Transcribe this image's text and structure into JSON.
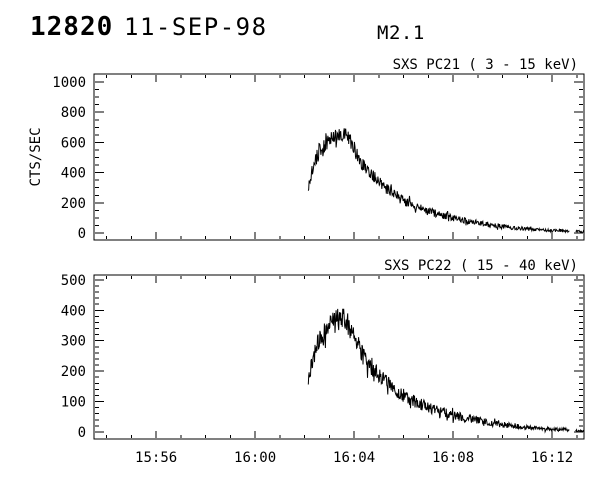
{
  "header": {
    "flare_number": "12820",
    "date": "11-SEP-98",
    "goes_class": "M2.1"
  },
  "colors": {
    "foreground": "#000000",
    "background": "#ffffff"
  },
  "chart_data": [
    {
      "type": "line",
      "title": "SXS PC21  (  3 - 15 keV)",
      "ylabel": "CTS/SEC",
      "x_unit": "time (minutes relative to 16:00)",
      "y_unit": "counts per second",
      "xlim": [
        -6.51,
        13.29
      ],
      "ylim": [
        -46,
        1053
      ],
      "x_ticks": [
        {
          "value": -4,
          "label": "15:56"
        },
        {
          "value": 0,
          "label": "16:00"
        },
        {
          "value": 4,
          "label": "16:04"
        },
        {
          "value": 8,
          "label": "16:08"
        },
        {
          "value": 12,
          "label": "16:12"
        }
      ],
      "y_ticks": [
        {
          "value": 0,
          "label": "0"
        },
        {
          "value": 200,
          "label": "200"
        },
        {
          "value": 400,
          "label": "400"
        },
        {
          "value": 600,
          "label": "600"
        },
        {
          "value": 800,
          "label": "800"
        },
        {
          "value": 1000,
          "label": "1000"
        }
      ],
      "x_minor_step": 1,
      "y_minor_step": 50,
      "show_x_tick_labels": false,
      "grid": false,
      "series": [
        {
          "name": "SXS PC21 3-15 keV lightcurve",
          "points": [
            [
              2.15,
              270
            ],
            [
              2.2,
              330
            ],
            [
              2.3,
              400
            ],
            [
              2.4,
              450
            ],
            [
              2.5,
              510
            ],
            [
              2.6,
              555
            ],
            [
              2.7,
              545
            ],
            [
              2.8,
              575
            ],
            [
              2.9,
              605
            ],
            [
              3.0,
              622
            ],
            [
              3.1,
              638
            ],
            [
              3.25,
              650
            ],
            [
              3.4,
              658
            ],
            [
              3.6,
              665
            ],
            [
              3.7,
              648
            ],
            [
              3.8,
              620
            ],
            [
              3.95,
              575
            ],
            [
              4.1,
              525
            ],
            [
              4.3,
              465
            ],
            [
              4.5,
              420
            ],
            [
              4.7,
              385
            ],
            [
              4.9,
              355
            ],
            [
              5.2,
              310
            ],
            [
              5.5,
              272
            ],
            [
              5.9,
              225
            ],
            [
              6.2,
              195
            ],
            [
              6.7,
              162
            ],
            [
              7.1,
              140
            ],
            [
              7.5,
              120
            ],
            [
              8.0,
              100
            ],
            [
              8.5,
              82
            ],
            [
              9.0,
              67
            ],
            [
              9.5,
              54
            ],
            [
              10.0,
              43
            ],
            [
              10.5,
              34
            ],
            [
              11.0,
              27
            ],
            [
              11.5,
              21
            ],
            [
              12.0,
              17
            ],
            [
              12.4,
              14
            ],
            [
              12.7,
              12
            ],
            null,
            [
              12.95,
              8
            ],
            [
              13.07,
              14
            ],
            [
              13.18,
              6
            ],
            [
              13.29,
              11
            ]
          ]
        }
      ],
      "noise": {
        "seed": 9157,
        "scale": 2.2,
        "spike_prob": 0.06,
        "spike_mult": 1.8,
        "dt": 0.02
      }
    },
    {
      "type": "line",
      "title": "SXS PC22  ( 15 - 40 keV)",
      "ylabel": "",
      "x_unit": "time (minutes relative to 16:00)",
      "y_unit": "counts per second",
      "xlim": [
        -6.51,
        13.29
      ],
      "ylim": [
        -23,
        516
      ],
      "x_ticks": [
        {
          "value": -4,
          "label": "15:56"
        },
        {
          "value": 0,
          "label": "16:00"
        },
        {
          "value": 4,
          "label": "16:04"
        },
        {
          "value": 8,
          "label": "16:08"
        },
        {
          "value": 12,
          "label": "16:12"
        }
      ],
      "y_ticks": [
        {
          "value": 0,
          "label": "0"
        },
        {
          "value": 100,
          "label": "100"
        },
        {
          "value": 200,
          "label": "200"
        },
        {
          "value": 300,
          "label": "300"
        },
        {
          "value": 400,
          "label": "400"
        },
        {
          "value": 500,
          "label": "500"
        }
      ],
      "x_minor_step": 1,
      "y_minor_step": 20,
      "show_x_tick_labels": true,
      "grid": false,
      "series": [
        {
          "name": "SXS PC22 15-40 keV lightcurve",
          "points": [
            [
              2.15,
              152
            ],
            [
              2.2,
              185
            ],
            [
              2.3,
              225
            ],
            [
              2.4,
              253
            ],
            [
              2.5,
              287
            ],
            [
              2.6,
              312
            ],
            [
              2.7,
              306
            ],
            [
              2.8,
              323
            ],
            [
              2.9,
              340
            ],
            [
              3.0,
              350
            ],
            [
              3.1,
              358
            ],
            [
              3.25,
              365
            ],
            [
              3.4,
              370
            ],
            [
              3.6,
              375
            ],
            [
              3.7,
              365
            ],
            [
              3.8,
              348
            ],
            [
              3.95,
              322
            ],
            [
              4.1,
              294
            ],
            [
              4.3,
              260
            ],
            [
              4.5,
              235
            ],
            [
              4.7,
              216
            ],
            [
              4.9,
              199
            ],
            [
              5.2,
              174
            ],
            [
              5.5,
              152
            ],
            [
              5.9,
              126
            ],
            [
              6.2,
              109
            ],
            [
              6.7,
              91
            ],
            [
              7.1,
              78
            ],
            [
              7.5,
              67
            ],
            [
              8.0,
              56
            ],
            [
              8.5,
              46
            ],
            [
              9.0,
              38
            ],
            [
              9.5,
              30
            ],
            [
              10.0,
              24
            ],
            [
              10.5,
              19
            ],
            [
              11.0,
              15
            ],
            [
              11.5,
              12
            ],
            [
              12.0,
              9
            ],
            [
              12.4,
              8
            ],
            [
              12.7,
              7
            ],
            null,
            [
              12.95,
              3
            ],
            [
              13.07,
              6
            ],
            [
              13.18,
              3
            ],
            [
              13.29,
              5
            ]
          ]
        }
      ],
      "noise": {
        "seed": 4217,
        "scale": 2.0,
        "spike_prob": 0.06,
        "spike_mult": 1.8,
        "dt": 0.02
      }
    }
  ]
}
